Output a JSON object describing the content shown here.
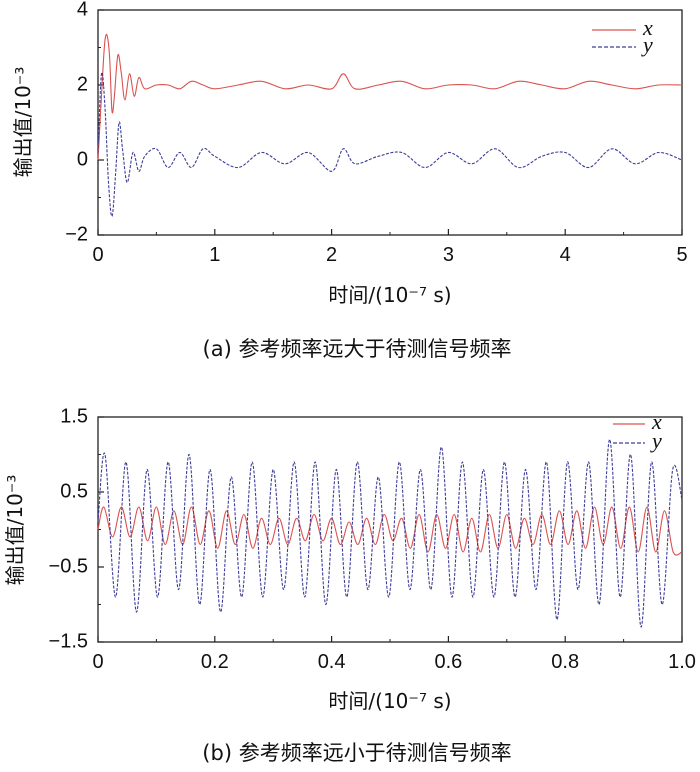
{
  "chart_data": [
    {
      "type": "line",
      "caption": "(a) 参考频率远大于待测信号频率",
      "xlabel": "时间/(10⁻⁷ s)",
      "ylabel": "输出值/10⁻³",
      "xlim": [
        0,
        5
      ],
      "ylim": [
        -2,
        4
      ],
      "xticks": [
        "0",
        "1",
        "2",
        "3",
        "4",
        "5"
      ],
      "yticks": [
        "4",
        "2",
        "0",
        "−2"
      ],
      "grid": false,
      "legend": "top-right",
      "series": [
        {
          "name": "x",
          "color": "#d9534f",
          "style": "solid",
          "x": [
            0,
            0.04,
            0.06,
            0.08,
            0.1,
            0.12,
            0.14,
            0.17,
            0.2,
            0.23,
            0.27,
            0.31,
            0.35,
            0.4,
            0.5,
            0.6,
            0.7,
            0.8,
            0.9,
            1.0,
            1.2,
            1.4,
            1.6,
            1.8,
            2.0,
            2.1,
            2.2,
            2.4,
            2.6,
            2.8,
            3.0,
            3.2,
            3.4,
            3.6,
            3.8,
            4.0,
            4.2,
            4.4,
            4.6,
            4.8,
            5.0
          ],
          "values": [
            0,
            2.3,
            3.2,
            3.3,
            2.7,
            1.3,
            1.7,
            2.8,
            2.3,
            1.6,
            2.3,
            1.7,
            2.2,
            1.9,
            2.0,
            2.0,
            1.9,
            2.1,
            2.0,
            1.9,
            2.0,
            2.1,
            1.9,
            2.0,
            1.9,
            2.3,
            1.9,
            2.0,
            2.1,
            1.9,
            2.0,
            2.0,
            1.9,
            2.1,
            2.0,
            1.9,
            2.1,
            2.0,
            1.9,
            2.0,
            2.0
          ]
        },
        {
          "name": "y",
          "color": "#3d3d99",
          "style": "dashed",
          "x": [
            0,
            0.03,
            0.06,
            0.09,
            0.12,
            0.15,
            0.18,
            0.21,
            0.25,
            0.3,
            0.35,
            0.4,
            0.5,
            0.6,
            0.7,
            0.8,
            0.9,
            1.0,
            1.2,
            1.4,
            1.6,
            1.8,
            2.0,
            2.1,
            2.2,
            2.4,
            2.6,
            2.8,
            3.0,
            3.2,
            3.4,
            3.6,
            3.8,
            4.0,
            4.2,
            4.4,
            4.6,
            4.8,
            5.0
          ],
          "values": [
            0.2,
            2.3,
            1.4,
            -0.6,
            -1.5,
            -0.4,
            1.0,
            0.3,
            -0.6,
            0.2,
            -0.3,
            0.1,
            0.3,
            -0.2,
            0.2,
            -0.2,
            0.3,
            0.1,
            -0.2,
            0.2,
            -0.1,
            0.2,
            -0.3,
            0.3,
            -0.1,
            0.1,
            0.2,
            -0.2,
            0.2,
            -0.1,
            0.3,
            -0.2,
            0.1,
            0.2,
            -0.2,
            0.3,
            -0.1,
            0.2,
            0.0
          ]
        }
      ]
    },
    {
      "type": "line",
      "caption": "(b) 参考频率远小于待测信号频率",
      "xlabel": "时间/(10⁻⁷ s)",
      "ylabel": "输出值/10⁻³",
      "xlim": [
        0,
        1.0
      ],
      "ylim": [
        -1.5,
        1.5
      ],
      "xticks": [
        "0",
        "0.2",
        "0.4",
        "0.6",
        "0.8",
        "1.0"
      ],
      "yticks": [
        "1.5",
        "0.5",
        "−0.5",
        "−1.5"
      ],
      "grid": false,
      "legend": "top-right",
      "series": [
        {
          "name": "x",
          "color": "#d9534f",
          "style": "solid",
          "x": [
            0,
            0.01,
            0.025,
            0.04,
            0.055,
            0.07,
            0.085,
            0.1,
            0.115,
            0.13,
            0.145,
            0.16,
            0.175,
            0.19,
            0.205,
            0.22,
            0.235,
            0.25,
            0.265,
            0.28,
            0.295,
            0.31,
            0.325,
            0.34,
            0.355,
            0.37,
            0.385,
            0.4,
            0.415,
            0.43,
            0.445,
            0.46,
            0.475,
            0.49,
            0.505,
            0.52,
            0.535,
            0.55,
            0.565,
            0.58,
            0.595,
            0.61,
            0.625,
            0.64,
            0.655,
            0.67,
            0.685,
            0.7,
            0.715,
            0.73,
            0.745,
            0.76,
            0.775,
            0.79,
            0.805,
            0.82,
            0.835,
            0.85,
            0.865,
            0.88,
            0.895,
            0.91,
            0.925,
            0.94,
            0.955,
            0.97,
            0.985,
            1.0
          ],
          "values": [
            0.0,
            0.3,
            -0.1,
            0.3,
            -0.1,
            0.3,
            -0.15,
            0.3,
            -0.2,
            0.25,
            -0.2,
            0.3,
            -0.2,
            0.25,
            -0.25,
            0.25,
            -0.2,
            0.2,
            -0.25,
            0.15,
            -0.2,
            0.15,
            -0.2,
            0.15,
            -0.15,
            0.2,
            -0.15,
            0.15,
            -0.2,
            0.1,
            -0.2,
            0.15,
            -0.2,
            0.2,
            -0.15,
            0.15,
            -0.25,
            0.2,
            -0.3,
            0.2,
            -0.25,
            0.2,
            -0.3,
            0.15,
            -0.3,
            0.2,
            -0.25,
            0.2,
            -0.25,
            0.15,
            -0.2,
            0.2,
            -0.2,
            0.25,
            -0.2,
            0.25,
            -0.25,
            0.3,
            -0.2,
            0.3,
            -0.25,
            0.3,
            -0.3,
            0.3,
            -0.3,
            0.25,
            -0.3,
            -0.3
          ]
        },
        {
          "name": "y",
          "color": "#3d3d99",
          "style": "dashed",
          "x": [
            0,
            0.012,
            0.03,
            0.048,
            0.066,
            0.084,
            0.102,
            0.12,
            0.138,
            0.156,
            0.174,
            0.192,
            0.21,
            0.228,
            0.246,
            0.264,
            0.282,
            0.3,
            0.318,
            0.336,
            0.354,
            0.372,
            0.39,
            0.408,
            0.426,
            0.444,
            0.462,
            0.48,
            0.498,
            0.516,
            0.534,
            0.552,
            0.57,
            0.588,
            0.606,
            0.624,
            0.642,
            0.66,
            0.678,
            0.696,
            0.714,
            0.732,
            0.75,
            0.768,
            0.786,
            0.804,
            0.822,
            0.84,
            0.858,
            0.876,
            0.894,
            0.912,
            0.93,
            0.948,
            0.966,
            0.984,
            1.0
          ],
          "values": [
            0.1,
            1.0,
            -0.9,
            0.9,
            -1.1,
            0.8,
            -0.9,
            0.9,
            -0.8,
            1.0,
            -1.0,
            0.8,
            -1.1,
            0.7,
            -0.9,
            0.9,
            -0.9,
            0.8,
            -0.8,
            0.9,
            -0.9,
            0.9,
            -1.0,
            0.8,
            -0.9,
            0.9,
            -0.8,
            0.7,
            -0.9,
            0.9,
            -0.8,
            0.8,
            -0.8,
            1.1,
            -0.9,
            0.9,
            -0.9,
            0.8,
            -0.9,
            0.9,
            -0.9,
            0.8,
            -0.8,
            0.9,
            -1.2,
            0.9,
            -0.8,
            0.9,
            -1.0,
            1.2,
            -0.9,
            1.0,
            -1.3,
            0.9,
            -1.0,
            0.8,
            0.4
          ]
        }
      ]
    }
  ]
}
